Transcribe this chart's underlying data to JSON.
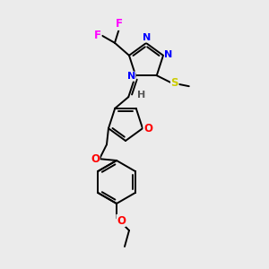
{
  "bg_color": "#ebebeb",
  "atom_colors": {
    "F": "#ff00ff",
    "N": "#0000ff",
    "S": "#cccc00",
    "O": "#ff0000",
    "C": "#000000",
    "H": "#555555"
  },
  "bond_color": "#000000",
  "figsize": [
    3.0,
    3.0
  ],
  "dpi": 100,
  "lw": 1.4
}
